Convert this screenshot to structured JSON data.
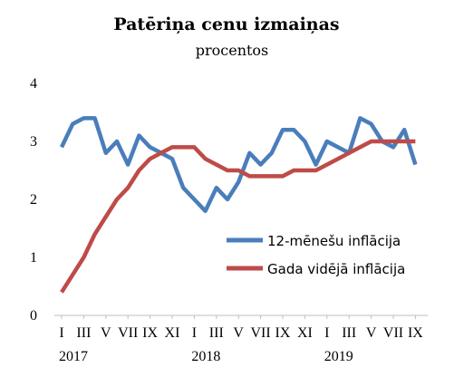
{
  "chart_data": {
    "type": "line",
    "title": "Patēriņa cenu izmaiņas",
    "subtitle": "procentos",
    "xlabel": "",
    "ylabel": "",
    "ylim": [
      0,
      4
    ],
    "yticks": [
      "0",
      "1",
      "2",
      "3",
      "4"
    ],
    "x_tick_labels": [
      "I",
      "III",
      "V",
      "VII",
      "IX",
      "XI",
      "I",
      "III",
      "V",
      "VII",
      "IX",
      "XI",
      "I",
      "III",
      "V",
      "VII",
      "IX"
    ],
    "years": [
      "2017",
      "2018",
      "2019"
    ],
    "x": [
      "2017-01",
      "2017-02",
      "2017-03",
      "2017-04",
      "2017-05",
      "2017-06",
      "2017-07",
      "2017-08",
      "2017-09",
      "2017-10",
      "2017-11",
      "2017-12",
      "2018-01",
      "2018-02",
      "2018-03",
      "2018-04",
      "2018-05",
      "2018-06",
      "2018-07",
      "2018-08",
      "2018-09",
      "2018-10",
      "2018-11",
      "2018-12",
      "2019-01",
      "2019-02",
      "2019-03",
      "2019-04",
      "2019-05",
      "2019-06",
      "2019-07",
      "2019-08",
      "2019-09"
    ],
    "series": [
      {
        "name": "12-mēnešu inflācija",
        "color": "#4a7ebb",
        "values": [
          2.9,
          3.3,
          3.4,
          3.4,
          2.8,
          3.0,
          2.6,
          3.1,
          2.9,
          2.8,
          2.7,
          2.2,
          2.0,
          1.8,
          2.2,
          2.0,
          2.3,
          2.8,
          2.6,
          2.8,
          3.2,
          3.2,
          3.0,
          2.6,
          3.0,
          2.9,
          2.8,
          3.4,
          3.3,
          3.0,
          2.9,
          3.2,
          2.6
        ]
      },
      {
        "name": "Gada vidējā inflācija",
        "color": "#be4b48",
        "values": [
          0.4,
          0.7,
          1.0,
          1.4,
          1.7,
          2.0,
          2.2,
          2.5,
          2.7,
          2.8,
          2.9,
          2.9,
          2.9,
          2.7,
          2.6,
          2.5,
          2.5,
          2.4,
          2.4,
          2.4,
          2.4,
          2.5,
          2.5,
          2.5,
          2.6,
          2.7,
          2.8,
          2.9,
          3.0,
          3.0,
          3.0,
          3.0,
          3.0
        ]
      }
    ],
    "legend_position": "right-middle",
    "grid": false
  }
}
